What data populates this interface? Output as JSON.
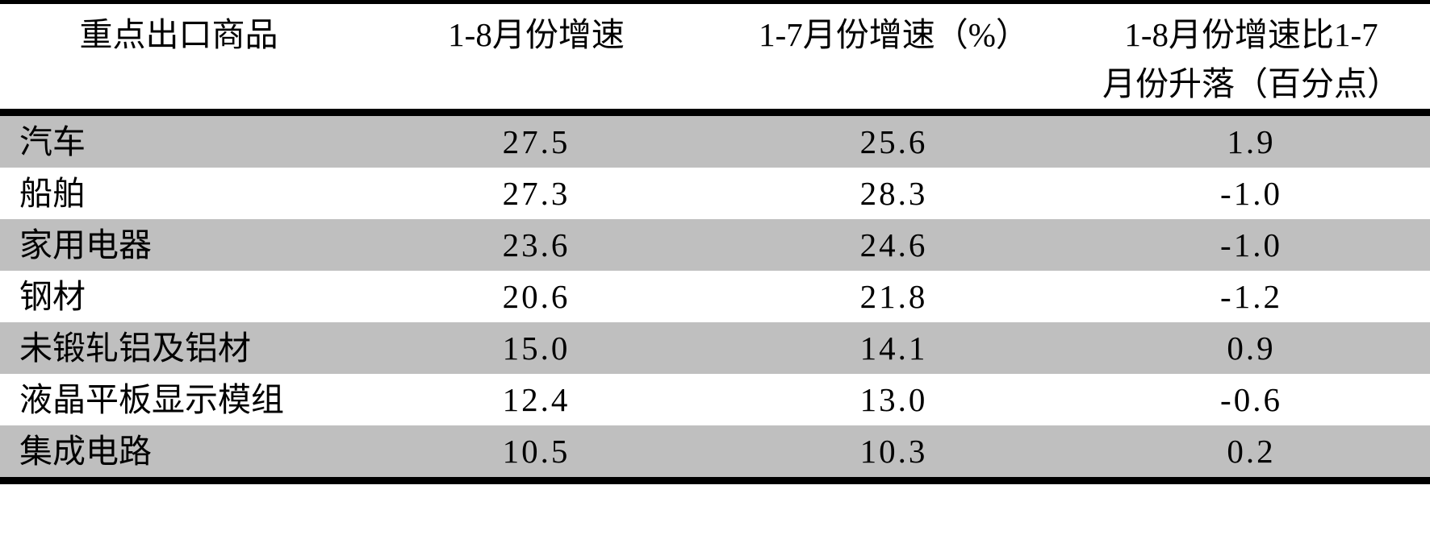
{
  "colors": {
    "shaded_row": "#bfbfbf",
    "rule": "#000000",
    "background": "#ffffff",
    "text": "#000000"
  },
  "table": {
    "columns": [
      {
        "id": "commodity",
        "label": "重点出口商品"
      },
      {
        "id": "growth_1_8",
        "label": "1-8月份增速"
      },
      {
        "id": "growth_1_7",
        "label": "1-7月份增速（%）"
      },
      {
        "id": "change",
        "label_line1": "1-8月份增速比1-7",
        "label_line2": "月份升落（百分点）"
      }
    ],
    "rows": [
      {
        "commodity": "汽车",
        "growth_1_8": "27.5",
        "growth_1_7": "25.6",
        "change": "1.9"
      },
      {
        "commodity": "船舶",
        "growth_1_8": "27.3",
        "growth_1_7": "28.3",
        "change": "-1.0"
      },
      {
        "commodity": "家用电器",
        "growth_1_8": "23.6",
        "growth_1_7": "24.6",
        "change": "-1.0"
      },
      {
        "commodity": "钢材",
        "growth_1_8": "20.6",
        "growth_1_7": "21.8",
        "change": "-1.2"
      },
      {
        "commodity": "未锻轧铝及铝材",
        "growth_1_8": "15.0",
        "growth_1_7": "14.1",
        "change": "0.9"
      },
      {
        "commodity": "液晶平板显示模组",
        "growth_1_8": "12.4",
        "growth_1_7": "13.0",
        "change": "-0.6"
      },
      {
        "commodity": "集成电路",
        "growth_1_8": "10.5",
        "growth_1_7": "10.3",
        "change": "0.2"
      }
    ]
  },
  "chart_data": {
    "type": "table",
    "row_header_label": "重点出口商品",
    "categories": [
      "汽车",
      "船舶",
      "家用电器",
      "钢材",
      "未锻轧铝及铝材",
      "液晶平板显示模组",
      "集成电路"
    ],
    "series": [
      {
        "name": "1-8月份增速",
        "values": [
          27.5,
          27.3,
          23.6,
          20.6,
          15.0,
          12.4,
          10.5
        ]
      },
      {
        "name": "1-7月份增速（%）",
        "values": [
          25.6,
          28.3,
          24.6,
          21.8,
          14.1,
          13.0,
          10.3
        ]
      },
      {
        "name": "1-8月份增速比1-7月份升落（百分点）",
        "values": [
          1.9,
          -1.0,
          -1.0,
          -1.2,
          0.9,
          -0.6,
          0.2
        ]
      }
    ],
    "layout": {
      "zebra_striping": true,
      "first_data_row_shaded": true,
      "grid": false
    }
  }
}
